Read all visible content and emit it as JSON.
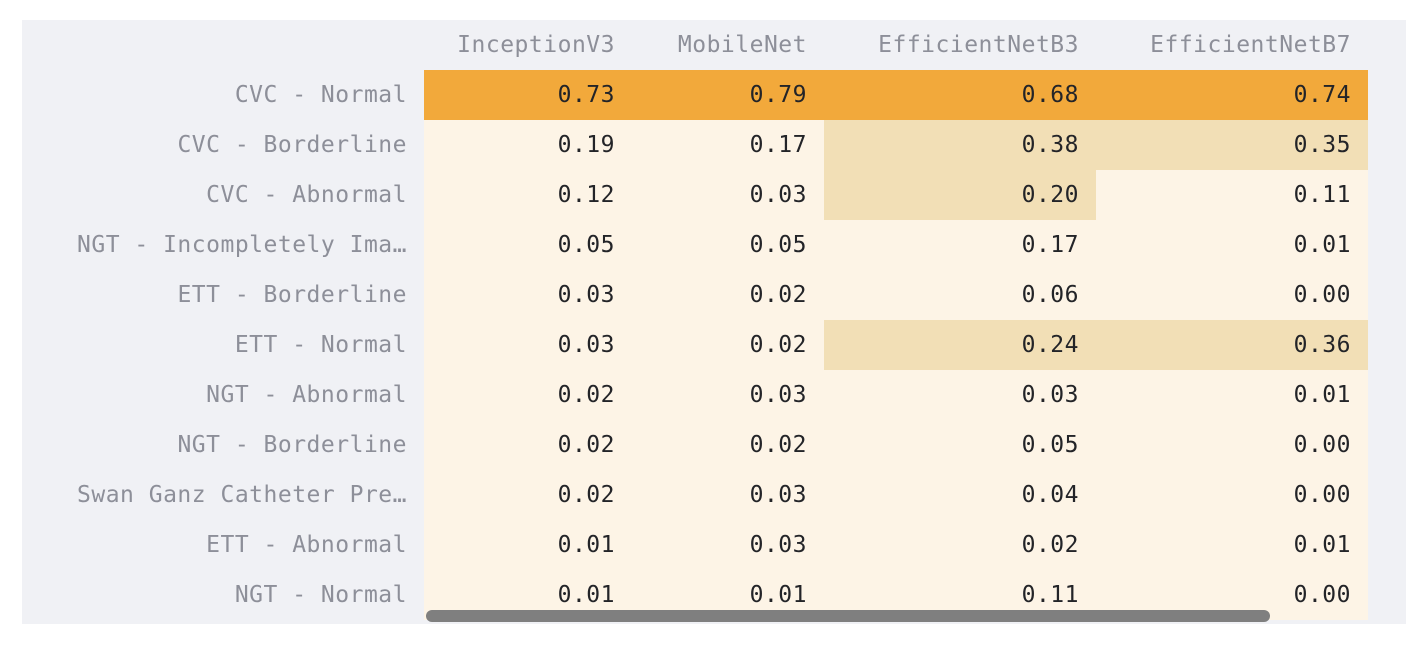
{
  "columns": [
    "InceptionV3",
    "MobileNet",
    "EfficientNetB3",
    "EfficientNetB7"
  ],
  "rows": [
    {
      "label": "CVC - Normal",
      "values": [
        "0.73",
        "0.79",
        "0.68",
        "0.74"
      ],
      "colors": [
        "#f2a93b",
        "#f2a93b",
        "#f2a93b",
        "#f2a93b"
      ]
    },
    {
      "label": "CVC - Borderline",
      "values": [
        "0.19",
        "0.17",
        "0.38",
        "0.35"
      ],
      "colors": [
        "#fdf4e6",
        "#fdf4e6",
        "#f2dfb6",
        "#f2dfb6"
      ]
    },
    {
      "label": "CVC - Abnormal",
      "values": [
        "0.12",
        "0.03",
        "0.20",
        "0.11"
      ],
      "colors": [
        "#fdf4e6",
        "#fdf4e6",
        "#f2dfb6",
        "#fdf4e6"
      ]
    },
    {
      "label": "NGT - Incompletely Ima…",
      "values": [
        "0.05",
        "0.05",
        "0.17",
        "0.01"
      ],
      "colors": [
        "#fdf4e6",
        "#fdf4e6",
        "#fdf4e6",
        "#fdf4e6"
      ]
    },
    {
      "label": "ETT - Borderline",
      "values": [
        "0.03",
        "0.02",
        "0.06",
        "0.00"
      ],
      "colors": [
        "#fdf4e6",
        "#fdf4e6",
        "#fdf4e6",
        "#fdf4e6"
      ]
    },
    {
      "label": "ETT - Normal",
      "values": [
        "0.03",
        "0.02",
        "0.24",
        "0.36"
      ],
      "colors": [
        "#fdf4e6",
        "#fdf4e6",
        "#f2dfb6",
        "#f2dfb6"
      ]
    },
    {
      "label": "NGT - Abnormal",
      "values": [
        "0.02",
        "0.03",
        "0.03",
        "0.01"
      ],
      "colors": [
        "#fdf4e6",
        "#fdf4e6",
        "#fdf4e6",
        "#fdf4e6"
      ]
    },
    {
      "label": "NGT - Borderline",
      "values": [
        "0.02",
        "0.02",
        "0.05",
        "0.00"
      ],
      "colors": [
        "#fdf4e6",
        "#fdf4e6",
        "#fdf4e6",
        "#fdf4e6"
      ]
    },
    {
      "label": "Swan Ganz Catheter Pre…",
      "values": [
        "0.02",
        "0.03",
        "0.04",
        "0.00"
      ],
      "colors": [
        "#fdf4e6",
        "#fdf4e6",
        "#fdf4e6",
        "#fdf4e6"
      ]
    },
    {
      "label": "ETT - Abnormal",
      "values": [
        "0.01",
        "0.03",
        "0.02",
        "0.01"
      ],
      "colors": [
        "#fdf4e6",
        "#fdf4e6",
        "#fdf4e6",
        "#fdf4e6"
      ]
    },
    {
      "label": "NGT - Normal",
      "values": [
        "0.01",
        "0.01",
        "0.11",
        "0.00"
      ],
      "colors": [
        "#fdf4e6",
        "#fdf4e6",
        "#fdf4e6",
        "#fdf4e6"
      ]
    }
  ],
  "colors": {
    "high": "#f2a93b",
    "mid": "#f2dfb6",
    "low": "#fdf4e6",
    "index_bg": "#f0f1f5",
    "header_text": "#8d8f99",
    "value_text": "#232428",
    "scrollbar": "#7f7f7f"
  }
}
